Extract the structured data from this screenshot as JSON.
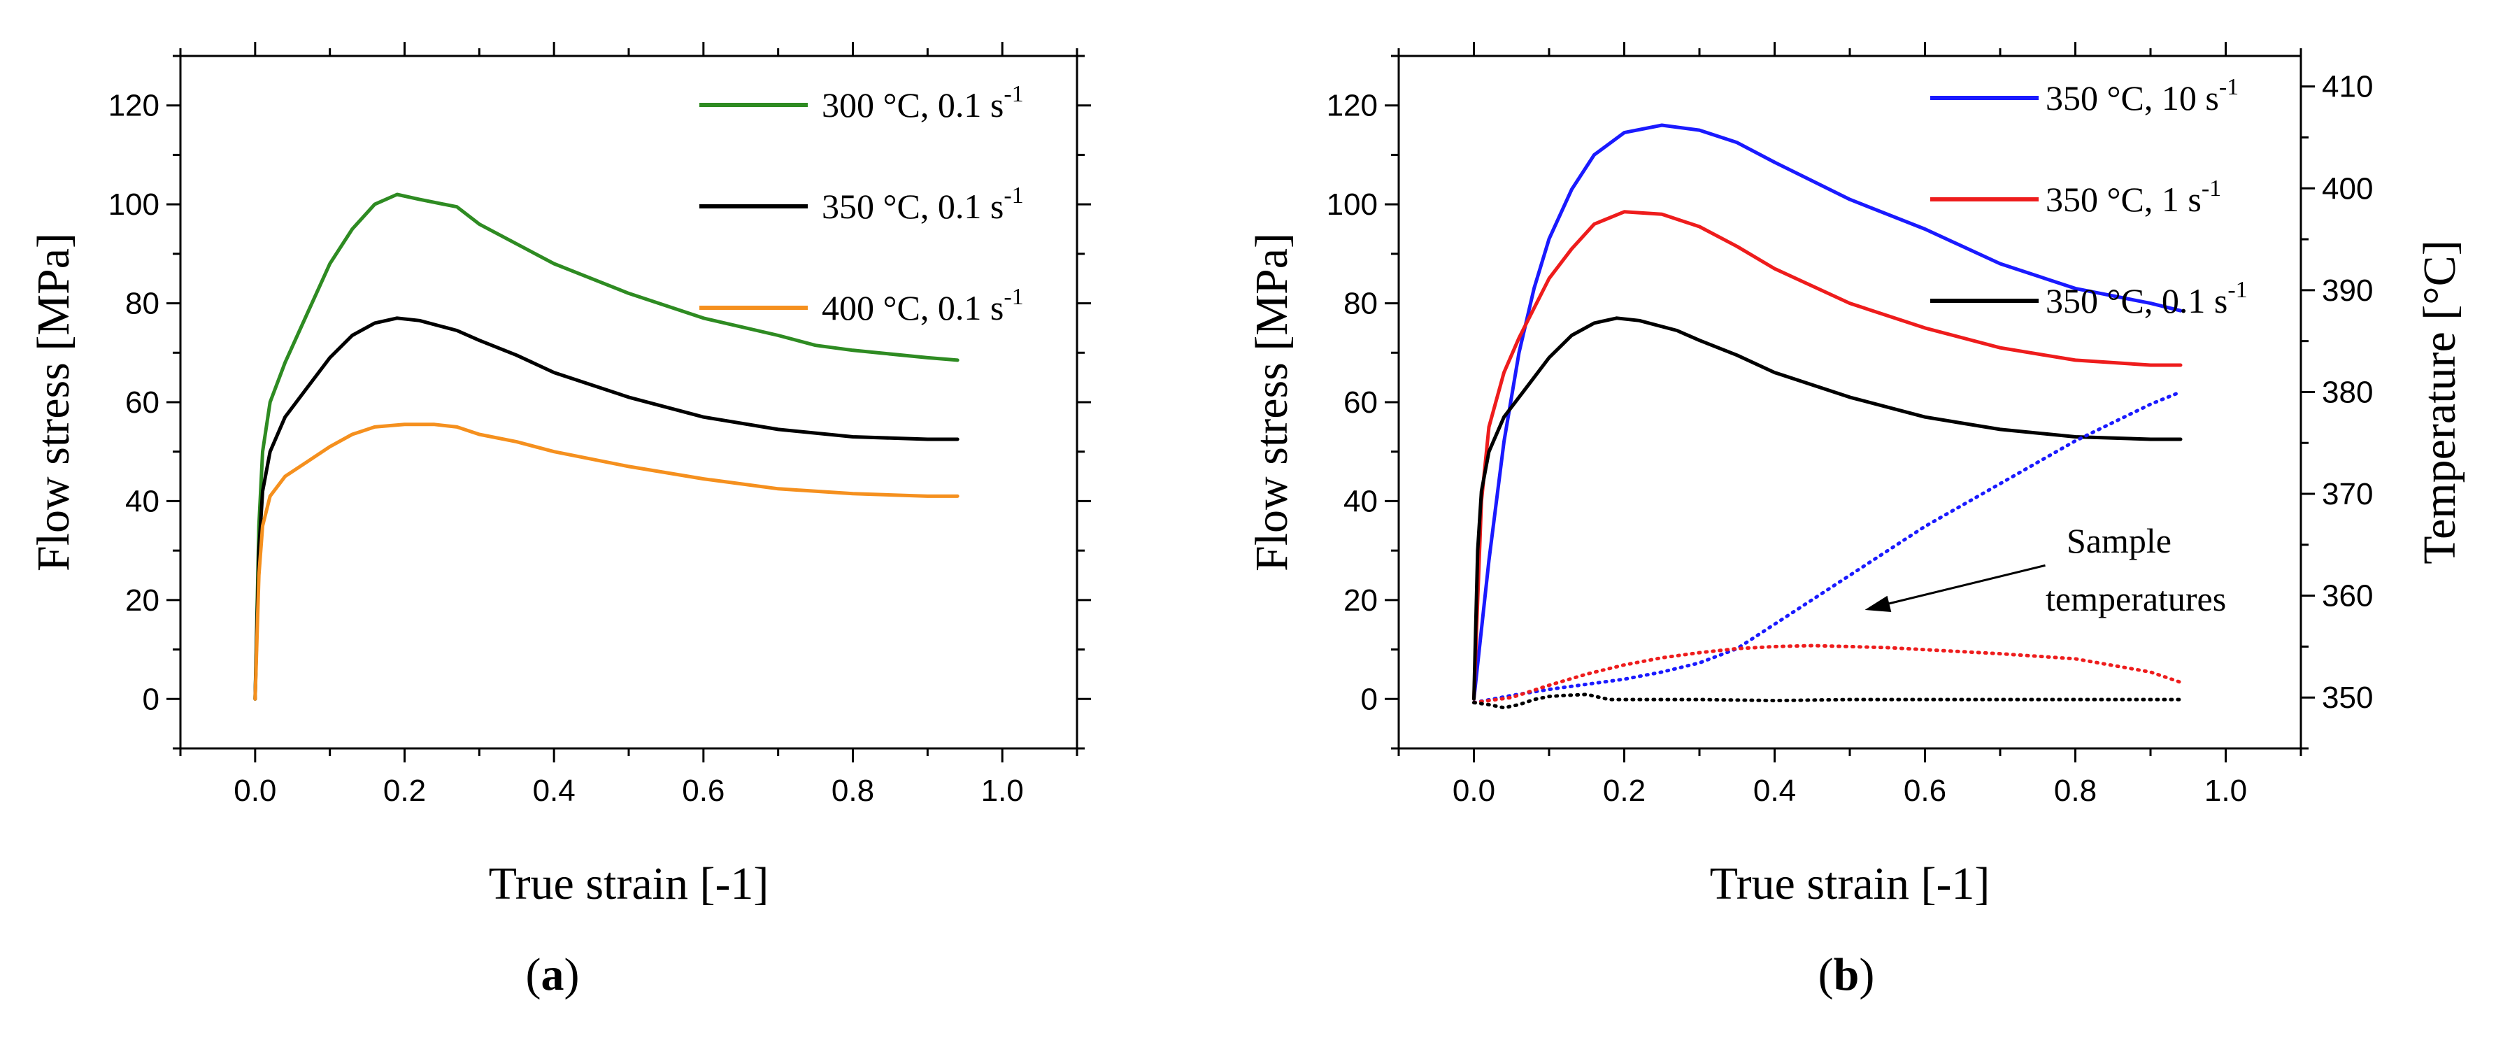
{
  "chart_data": [
    {
      "type": "line",
      "caption_letter": "a",
      "title": "",
      "xlabel": "True strain [-1]",
      "ylabel": "Flow stress [MPa]",
      "xlim": [
        -0.1,
        1.1
      ],
      "ylim": [
        -10,
        130
      ],
      "xticks": [
        0.0,
        0.2,
        0.4,
        0.6,
        0.8,
        1.0
      ],
      "xtick_labels": [
        "0.0",
        "0.2",
        "0.4",
        "0.6",
        "0.8",
        "1.0"
      ],
      "yticks": [
        0,
        20,
        40,
        60,
        80,
        100,
        120
      ],
      "ytick_labels": [
        "0",
        "20",
        "40",
        "60",
        "80",
        "100",
        "120"
      ],
      "legend_position": "top-right",
      "series": [
        {
          "name": "300 °C, 0.1 s",
          "sup": "-1",
          "color": "#2e8b22",
          "style": "solid",
          "x": [
            0.0,
            0.005,
            0.01,
            0.02,
            0.04,
            0.07,
            0.1,
            0.13,
            0.16,
            0.19,
            0.22,
            0.27,
            0.3,
            0.35,
            0.4,
            0.5,
            0.6,
            0.7,
            0.75,
            0.8,
            0.9,
            0.94
          ],
          "y": [
            0,
            35,
            50,
            60,
            68,
            78,
            88,
            95,
            100,
            102,
            101,
            99.5,
            96,
            92,
            88,
            82,
            77,
            73.5,
            71.5,
            70.5,
            69,
            68.5
          ]
        },
        {
          "name": "350 °C, 0.1 s",
          "sup": "-1",
          "color": "#000000",
          "style": "solid",
          "x": [
            0.0,
            0.005,
            0.01,
            0.02,
            0.04,
            0.07,
            0.1,
            0.13,
            0.16,
            0.19,
            0.22,
            0.27,
            0.3,
            0.35,
            0.4,
            0.5,
            0.6,
            0.7,
            0.8,
            0.9,
            0.94
          ],
          "y": [
            0,
            30,
            42,
            50,
            57,
            63,
            69,
            73.5,
            76,
            77,
            76.5,
            74.5,
            72.5,
            69.5,
            66,
            61,
            57,
            54.5,
            53,
            52.5,
            52.5
          ]
        },
        {
          "name": "400 °C, 0.1 s",
          "sup": "-1",
          "color": "#f5901e",
          "style": "solid",
          "x": [
            0.0,
            0.005,
            0.01,
            0.02,
            0.04,
            0.07,
            0.1,
            0.13,
            0.16,
            0.2,
            0.24,
            0.27,
            0.3,
            0.35,
            0.4,
            0.5,
            0.6,
            0.7,
            0.8,
            0.9,
            0.94
          ],
          "y": [
            0,
            25,
            35,
            41,
            45,
            48,
            51,
            53.5,
            55,
            55.5,
            55.5,
            55,
            53.5,
            52,
            50,
            47,
            44.5,
            42.5,
            41.5,
            41,
            41
          ]
        }
      ]
    },
    {
      "type": "line",
      "caption_letter": "b",
      "title": "",
      "xlabel": "True strain [-1]",
      "ylabel": "Flow stress [MPa]",
      "ylabel_right": "Temperature [°C]",
      "xlim": [
        -0.1,
        1.1
      ],
      "ylim": [
        -10,
        130
      ],
      "ylim_right": [
        345,
        413
      ],
      "xticks": [
        0.0,
        0.2,
        0.4,
        0.6,
        0.8,
        1.0
      ],
      "xtick_labels": [
        "0.0",
        "0.2",
        "0.4",
        "0.6",
        "0.8",
        "1.0"
      ],
      "yticks": [
        0,
        20,
        40,
        60,
        80,
        100,
        120
      ],
      "ytick_labels": [
        "0",
        "20",
        "40",
        "60",
        "80",
        "100",
        "120"
      ],
      "yticks_right": [
        350,
        360,
        370,
        380,
        390,
        400,
        410
      ],
      "ytick_labels_right": [
        "350",
        "360",
        "370",
        "380",
        "390",
        "400",
        "410"
      ],
      "legend_position": "top-right",
      "annotation": {
        "lines": [
          "Sample",
          "temperatures"
        ],
        "arrow_from": [
          0.76,
          27
        ],
        "arrow_to": [
          0.52,
          18
        ]
      },
      "series": [
        {
          "name": "350 °C, 10 s",
          "sup": "-1",
          "color": "#1a1aff",
          "style": "solid",
          "axis": "left",
          "x": [
            0.0,
            0.02,
            0.04,
            0.06,
            0.08,
            0.1,
            0.13,
            0.16,
            0.2,
            0.25,
            0.3,
            0.35,
            0.4,
            0.5,
            0.6,
            0.7,
            0.8,
            0.9,
            0.94
          ],
          "y": [
            0,
            28,
            52,
            70,
            83,
            93,
            103,
            110,
            114.5,
            116,
            115,
            112.5,
            108.5,
            101,
            95,
            88,
            83,
            80,
            78.5
          ]
        },
        {
          "name": "350 °C, 1 s",
          "sup": "-1",
          "color": "#ee1c1c",
          "style": "solid",
          "axis": "left",
          "x": [
            0.0,
            0.01,
            0.02,
            0.04,
            0.06,
            0.08,
            0.1,
            0.13,
            0.16,
            0.2,
            0.25,
            0.3,
            0.35,
            0.4,
            0.5,
            0.6,
            0.7,
            0.8,
            0.9,
            0.94
          ],
          "y": [
            0,
            40,
            55,
            66,
            73,
            79,
            85,
            91,
            96,
            98.5,
            98,
            95.5,
            91.5,
            87,
            80,
            75,
            71,
            68.5,
            67.5,
            67.5
          ]
        },
        {
          "name": "350 °C, 0.1 s",
          "sup": "-1",
          "color": "#000000",
          "style": "solid",
          "axis": "left",
          "x": [
            0.0,
            0.005,
            0.01,
            0.02,
            0.04,
            0.07,
            0.1,
            0.13,
            0.16,
            0.19,
            0.22,
            0.27,
            0.3,
            0.35,
            0.4,
            0.5,
            0.6,
            0.7,
            0.8,
            0.9,
            0.94
          ],
          "y": [
            0,
            30,
            42,
            50,
            57,
            63,
            69,
            73.5,
            76,
            77,
            76.5,
            74.5,
            72.5,
            69.5,
            66,
            61,
            57,
            54.5,
            53,
            52.5,
            52.5
          ]
        },
        {
          "name": "Temperature 350 °C, 10 s-1",
          "color": "#1a1aff",
          "style": "dotted",
          "axis": "right",
          "in_legend": false,
          "x": [
            0.0,
            0.05,
            0.1,
            0.15,
            0.2,
            0.25,
            0.3,
            0.35,
            0.4,
            0.5,
            0.6,
            0.7,
            0.8,
            0.9,
            0.94
          ],
          "y": [
            349.5,
            350.2,
            350.8,
            351.3,
            351.8,
            352.5,
            353.4,
            354.8,
            357.2,
            362.0,
            366.8,
            371.0,
            375.2,
            378.8,
            380.0
          ]
        },
        {
          "name": "Temperature 350 °C, 1 s-1",
          "color": "#ee1c1c",
          "style": "dotted",
          "axis": "right",
          "in_legend": false,
          "x": [
            0.0,
            0.05,
            0.1,
            0.15,
            0.2,
            0.25,
            0.3,
            0.35,
            0.4,
            0.45,
            0.5,
            0.55,
            0.6,
            0.7,
            0.8,
            0.9,
            0.94
          ],
          "y": [
            349.5,
            350.0,
            351.2,
            352.3,
            353.2,
            353.9,
            354.4,
            354.8,
            355.0,
            355.1,
            355.0,
            354.9,
            354.7,
            354.3,
            353.8,
            352.5,
            351.5
          ]
        },
        {
          "name": "Temperature 350 °C, 0.1 s-1",
          "color": "#000000",
          "style": "dotted",
          "axis": "right",
          "in_legend": false,
          "x": [
            0.0,
            0.02,
            0.04,
            0.06,
            0.08,
            0.1,
            0.12,
            0.15,
            0.18,
            0.2,
            0.3,
            0.4,
            0.5,
            0.6,
            0.7,
            0.8,
            0.9,
            0.94
          ],
          "y": [
            349.5,
            349.3,
            349.0,
            349.3,
            349.8,
            350.1,
            350.2,
            350.3,
            349.8,
            349.8,
            349.8,
            349.7,
            349.8,
            349.8,
            349.8,
            349.8,
            349.8,
            349.8
          ]
        }
      ]
    }
  ]
}
